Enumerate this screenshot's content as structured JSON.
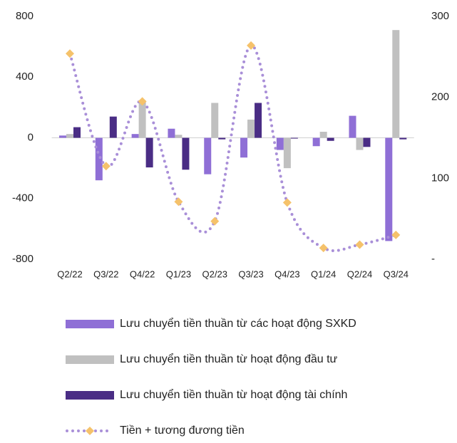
{
  "chart_data": {
    "type": "bar",
    "categories": [
      "Q2/22",
      "Q3/22",
      "Q4/22",
      "Q1/23",
      "Q2/23",
      "Q3/23",
      "Q4/23",
      "Q1/24",
      "Q2/24",
      "Q3/24"
    ],
    "series": [
      {
        "name": "Lưu chuyển tiền thuần từ các hoạt động SXKD",
        "type": "bar",
        "color": "#8f6fd6",
        "values": [
          15,
          -280,
          25,
          60,
          -240,
          -130,
          -80,
          -55,
          145,
          -680
        ]
      },
      {
        "name": "Lưu chuyển tiền thuần từ hoạt động đầu tư",
        "type": "bar",
        "color": "#c0c0c0",
        "values": [
          25,
          0,
          240,
          20,
          230,
          120,
          -200,
          40,
          -80,
          710
        ]
      },
      {
        "name": "Lưu chuyển tiền thuần từ hoạt động tài chính",
        "type": "bar",
        "color": "#4a2d85",
        "values": [
          70,
          140,
          -195,
          -210,
          -10,
          230,
          -5,
          -20,
          -60,
          -10
        ]
      },
      {
        "name": "Tiền + tương đương tiền",
        "type": "line",
        "axis": "y2",
        "color": "#a98fd8",
        "marker_color": "#f5c26b",
        "values": [
          254,
          115,
          195,
          71,
          47,
          264,
          70,
          14,
          18,
          30
        ]
      }
    ],
    "ylim": [
      -800,
      800
    ],
    "yticks": [
      -800,
      -400,
      0,
      400,
      800
    ],
    "y2lim": [
      0,
      300
    ],
    "y2ticks": [
      {
        "value": 0,
        "label": "-"
      },
      100,
      200,
      300
    ]
  }
}
